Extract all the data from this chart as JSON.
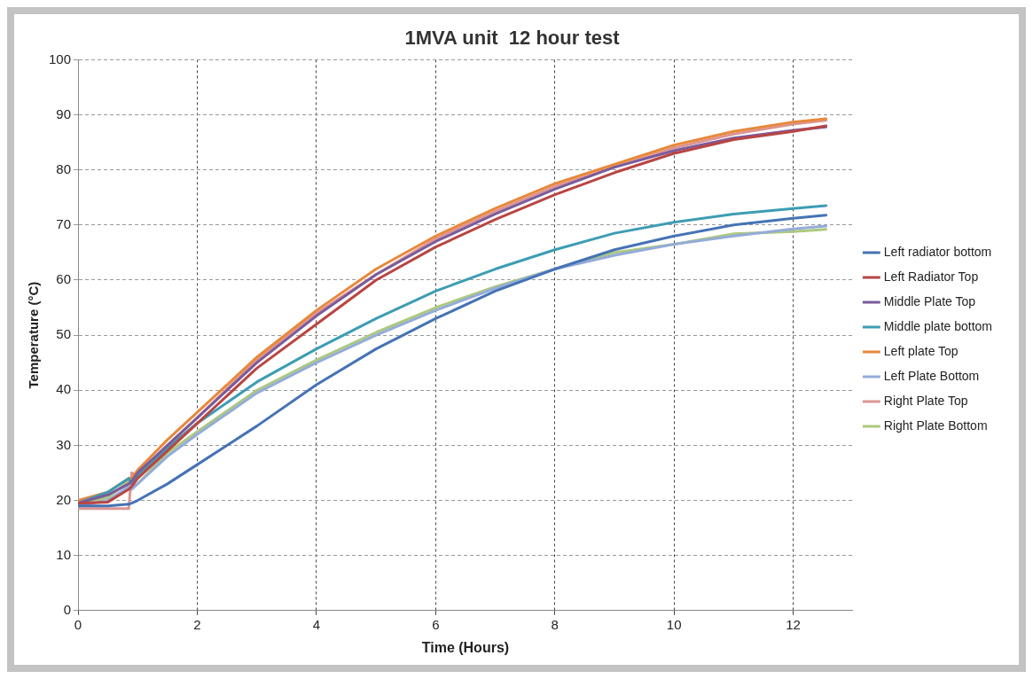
{
  "chart_data": {
    "type": "line",
    "title": "1MVA unit  12 hour test",
    "xlabel": "Time (Hours)",
    "ylabel": "Temperature (°C)",
    "x": [
      0,
      0.5,
      0.85,
      0.9,
      1,
      1.5,
      2,
      3,
      4,
      5,
      6,
      7,
      8,
      9,
      10,
      11,
      12,
      12.55
    ],
    "series": [
      {
        "name": "Left radiator bottom",
        "color": "#4573b4",
        "values": [
          19,
          19,
          19.3,
          19.5,
          20,
          23,
          26.5,
          33.5,
          41,
          47.5,
          53,
          58,
          62,
          65.5,
          68,
          70,
          71.2,
          71.8
        ]
      },
      {
        "name": "Left Radiator Top",
        "color": "#b94542",
        "values": [
          19.5,
          19.7,
          22,
          22.5,
          24,
          29,
          34,
          44,
          52,
          60,
          66,
          71,
          75.5,
          79.5,
          83,
          85.5,
          87,
          88
        ]
      },
      {
        "name": "Middle Plate Top",
        "color": "#7a5b9b",
        "values": [
          19.5,
          21,
          23,
          23.5,
          25,
          30,
          35,
          45,
          53.5,
          61,
          67,
          72,
          76.5,
          80.5,
          83.5,
          85.8,
          87.2,
          87.8
        ]
      },
      {
        "name": "Middle plate bottom",
        "color": "#3d9db3",
        "values": [
          19.5,
          21.5,
          24,
          23,
          24.5,
          29.5,
          34,
          41.5,
          47.5,
          53,
          58,
          62,
          65.5,
          68.5,
          70.5,
          72,
          73,
          73.5
        ]
      },
      {
        "name": "Left plate Top",
        "color": "#e8883a",
        "values": [
          20,
          21.5,
          24,
          24,
          25.5,
          31,
          36,
          46,
          54.5,
          62,
          68,
          73,
          77.5,
          81,
          84.5,
          87,
          88.7,
          89.3
        ]
      },
      {
        "name": "Left Plate Bottom",
        "color": "#94acd9",
        "values": [
          19,
          20,
          22.5,
          22,
          23,
          28,
          32,
          39.5,
          45,
          50,
          54.5,
          58.5,
          62,
          64.5,
          66.5,
          68,
          69.3,
          69.8
        ]
      },
      {
        "name": "Right Plate Top",
        "color": "#dc9593",
        "values": [
          18.5,
          18.5,
          18.5,
          25,
          24.5,
          30,
          35,
          45.5,
          54,
          61,
          67.5,
          72.5,
          77,
          80.5,
          84,
          86.5,
          88.3,
          89
        ]
      },
      {
        "name": "Right Plate Bottom",
        "color": "#adc97e",
        "values": [
          19.5,
          20.5,
          23.5,
          22.5,
          23,
          28.6,
          32.5,
          40,
          45.5,
          50.5,
          55,
          58.8,
          62,
          65,
          66.5,
          68.4,
          68.8,
          69.2
        ]
      }
    ],
    "xlim": [
      0,
      13
    ],
    "xticks": [
      0,
      2,
      4,
      6,
      8,
      10,
      12
    ],
    "ylim": [
      0,
      100
    ],
    "yticks": [
      0,
      10,
      20,
      30,
      40,
      50,
      60,
      70,
      80,
      90,
      100
    ],
    "grid": true,
    "legend": "right",
    "marker": "none",
    "line_style": "solid"
  }
}
